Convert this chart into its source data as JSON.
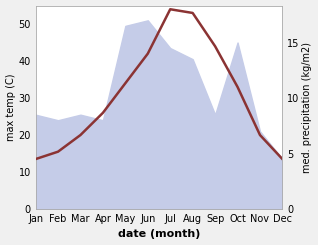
{
  "months": [
    "Jan",
    "Feb",
    "Mar",
    "Apr",
    "May",
    "Jun",
    "Jul",
    "Aug",
    "Sep",
    "Oct",
    "Nov",
    "Dec"
  ],
  "temp": [
    13.5,
    15.5,
    20.0,
    26.0,
    34.0,
    42.0,
    54.0,
    53.0,
    44.0,
    33.0,
    20.0,
    13.5
  ],
  "precip": [
    8.5,
    8.0,
    8.5,
    8.0,
    16.5,
    17.0,
    14.5,
    13.5,
    8.5,
    15.0,
    7.0,
    4.5
  ],
  "temp_color": "#8B3333",
  "precip_fill_color": "#c5cce8",
  "precip_fill_alpha": 1.0,
  "temp_ylim": [
    0,
    55
  ],
  "precip_ylim": [
    0,
    18.33
  ],
  "temp_yticks": [
    0,
    10,
    20,
    30,
    40,
    50
  ],
  "precip_yticks": [
    0,
    5,
    10,
    15
  ],
  "ylabel_left": "max temp (C)",
  "ylabel_right": "med. precipitation (kg/m2)",
  "xlabel": "date (month)",
  "bg_color": "#f0f0f0",
  "plot_bg_color": "#ffffff",
  "spine_color": "#aaaaaa",
  "temp_linewidth": 1.8,
  "label_fontsize": 7,
  "tick_fontsize": 7,
  "xlabel_fontsize": 8
}
